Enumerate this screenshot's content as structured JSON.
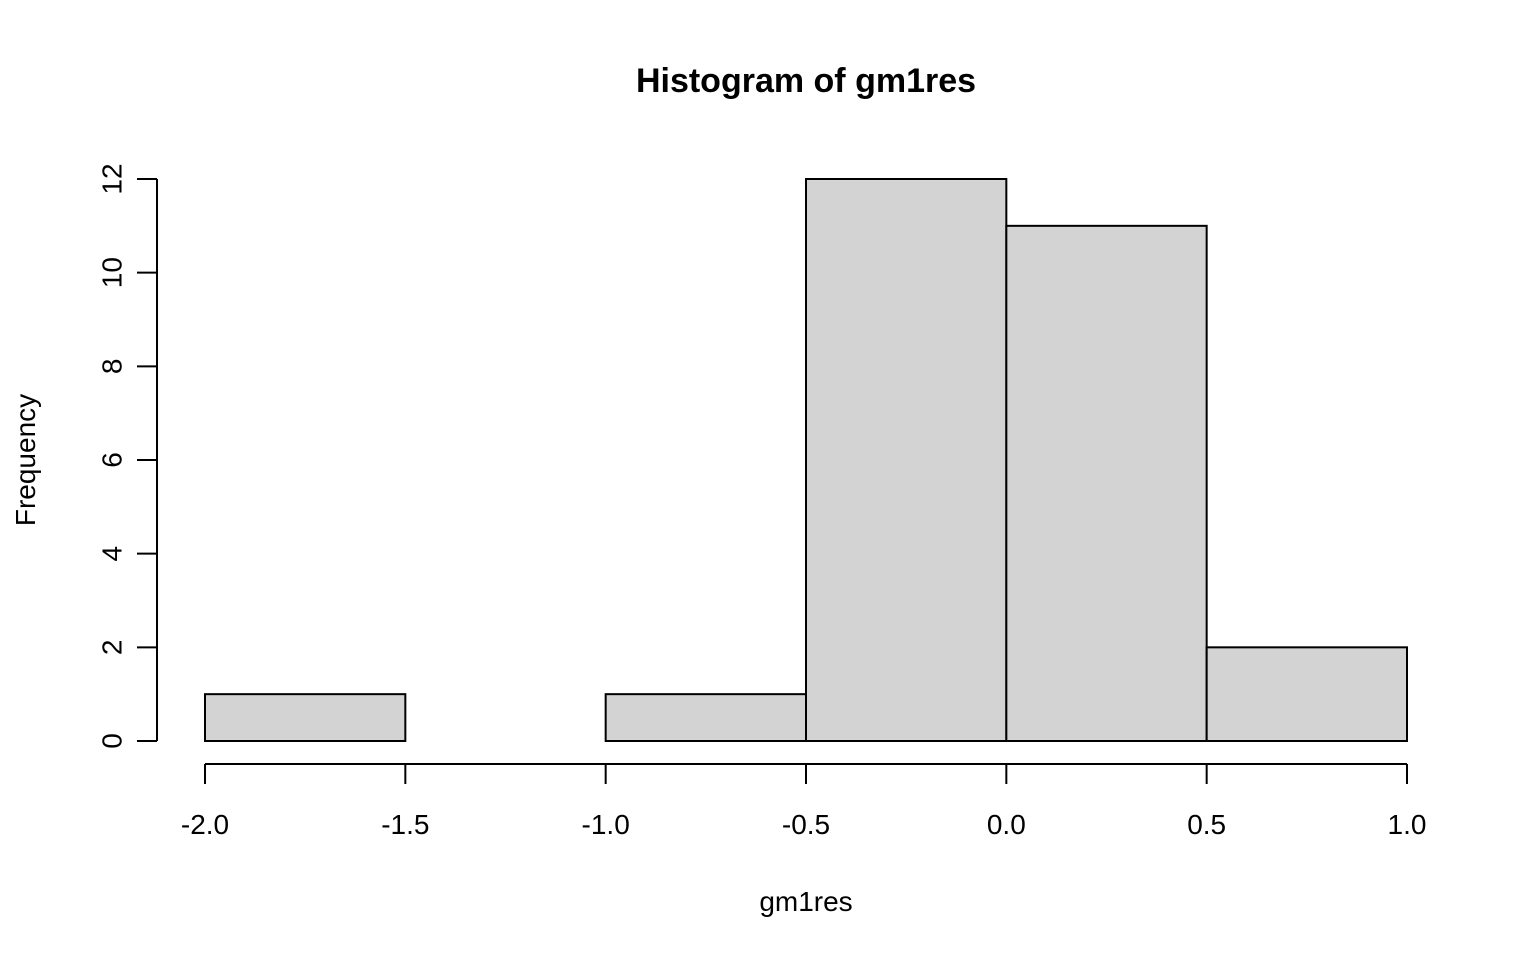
{
  "chart_data": {
    "type": "bar",
    "subtype": "histogram",
    "title": "Histogram of gm1res",
    "xlabel": "gm1res",
    "ylabel": "Frequency",
    "bins": [
      {
        "from": -2.0,
        "to": -1.5,
        "count": 1
      },
      {
        "from": -1.5,
        "to": -1.0,
        "count": 0
      },
      {
        "from": -1.0,
        "to": -0.5,
        "count": 1
      },
      {
        "from": -0.5,
        "to": 0.0,
        "count": 12
      },
      {
        "from": 0.0,
        "to": 0.5,
        "count": 11
      },
      {
        "from": 0.5,
        "to": 1.0,
        "count": 2
      }
    ],
    "xlim": [
      -2.0,
      1.0
    ],
    "ylim": [
      0,
      12
    ],
    "x_ticks": [
      -2.0,
      -1.5,
      -1.0,
      -0.5,
      0.0,
      0.5,
      1.0
    ],
    "x_tick_labels": [
      "-2.0",
      "-1.5",
      "-1.0",
      "-0.5",
      "0.0",
      "0.5",
      "1.0"
    ],
    "y_ticks": [
      0,
      2,
      4,
      6,
      8,
      10,
      12
    ],
    "y_tick_labels": [
      "0",
      "2",
      "4",
      "6",
      "8",
      "10",
      "12"
    ],
    "bar_fill": "#d3d3d3",
    "bar_stroke": "#000000",
    "background": "#ffffff",
    "grid": false,
    "legend": "none"
  }
}
